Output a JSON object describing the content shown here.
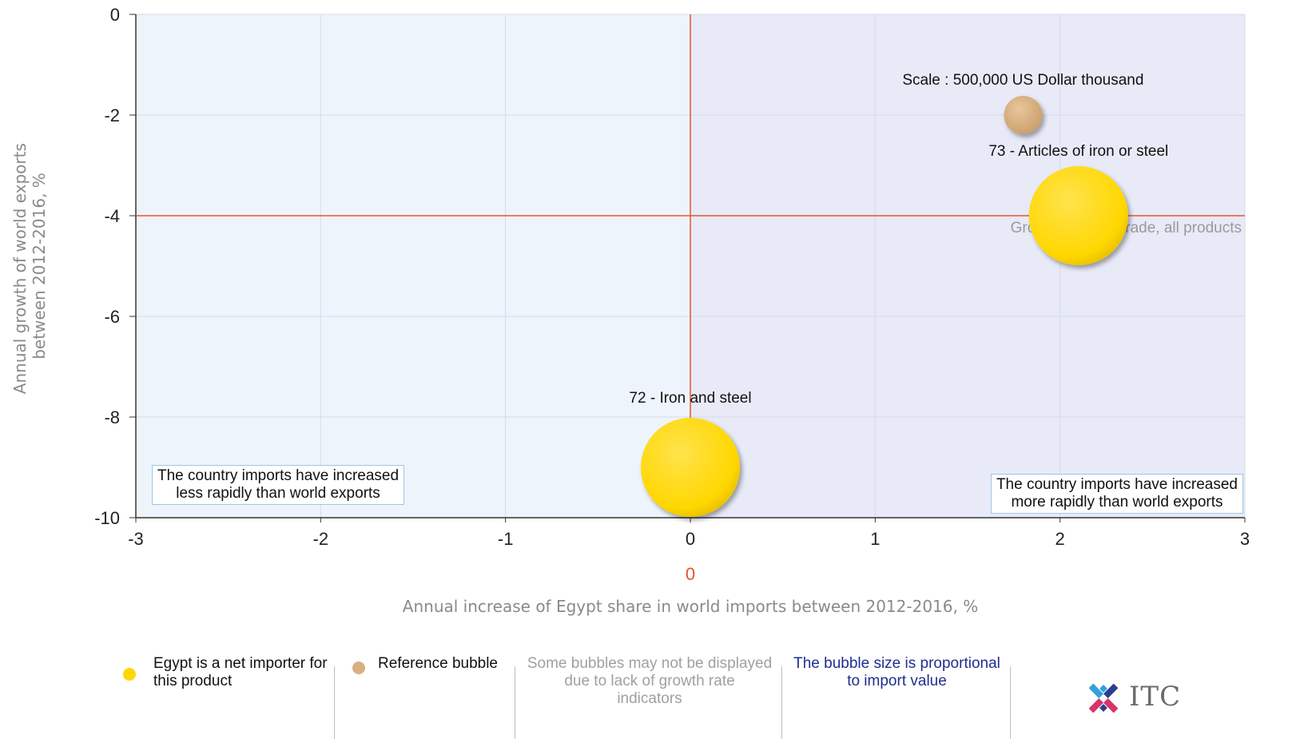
{
  "chart_data": {
    "type": "bubble",
    "x_axis": {
      "label": "Annual increase of Egypt share in world imports between 2012-2016, %",
      "range": [
        -3,
        3
      ],
      "ticks": [
        "-3",
        "-2",
        "-1",
        "0",
        "1",
        "2",
        "3"
      ],
      "origin_label": "0"
    },
    "y_axis": {
      "label_line1": "Annual growth of world exports",
      "label_line2": "between 2012-2016, %",
      "range": [
        -10,
        0
      ],
      "ticks": [
        "0",
        "-2",
        "-4",
        "-6",
        "-8",
        "-10"
      ]
    },
    "reference_lines": {
      "x": 0,
      "y": -4,
      "y_label": "Growth of world trade, all products"
    },
    "series": [
      {
        "label": "72 - Iron and steel",
        "x": 0.0,
        "y": -9.0,
        "color": "#FFD700"
      },
      {
        "label": "73 - Articles of iron or steel",
        "x": 2.1,
        "y": -4.0,
        "color": "#FFD700"
      }
    ],
    "reference_bubble": {
      "label": "Scale : 500,000 US Dollar thousand",
      "x": 1.8,
      "y": -2.0,
      "color": "#D9B07F"
    },
    "quadrant_labels": {
      "left": "The country imports have increased\nless rapidly than world exports",
      "right": "The country imports have increased\nmore rapidly than world exports"
    },
    "grid": true
  },
  "legend": {
    "net_importer": "Egypt is a net importer for\nthis product",
    "reference": "Reference bubble",
    "missing": "Some bubbles may not be displayed\ndue to lack of growth rate\nindicators",
    "size_note": "The bubble size is proportional\nto import value",
    "logo": "ITC"
  },
  "colors": {
    "net_importer_dot": "#FFD700",
    "reference_dot": "#D9B07F",
    "ref_lines": "#E8542B",
    "left_bg": "#EEF4FC",
    "right_bg": "#E8EAF8",
    "size_note_text": "#1F2F8F",
    "missing_text": "#A0A0A0"
  }
}
